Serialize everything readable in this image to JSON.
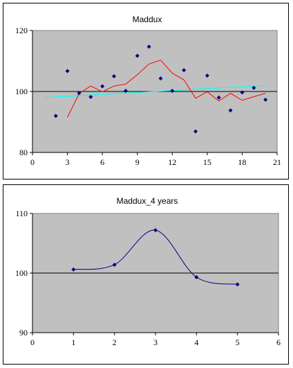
{
  "chart_data": [
    {
      "type": "scatter",
      "title": "Maddux",
      "xlim": [
        0,
        21
      ],
      "ylim": [
        80,
        120
      ],
      "xticks": [
        0,
        3,
        6,
        9,
        12,
        15,
        18,
        21
      ],
      "yticks": [
        80,
        100,
        120
      ],
      "reference_line": 100,
      "grid": false,
      "legend": "none",
      "plot_background": "#c0c0c0",
      "points_color": "#000080",
      "moving_average_color": "#ff0000",
      "trend_color": "#00ffff",
      "points": {
        "x": [
          2,
          3,
          4,
          5,
          6,
          7,
          8,
          9,
          10,
          11,
          12,
          13,
          14,
          15,
          16,
          17,
          18,
          19,
          20
        ],
        "y": [
          92,
          106.7,
          99.5,
          98.2,
          101.7,
          105,
          100.2,
          111.7,
          114.7,
          104.3,
          100.2,
          107,
          86.9,
          105.2,
          98,
          93.8,
          99.7,
          101.2,
          97.3
        ]
      },
      "moving_average": {
        "x": [
          3,
          4,
          5,
          6,
          7,
          8,
          9,
          10,
          11,
          12,
          13,
          14,
          15,
          16,
          17,
          18,
          19,
          20
        ],
        "y": [
          91.5,
          99.3,
          101.8,
          99.9,
          101.8,
          102.4,
          105.5,
          109,
          110.3,
          106,
          103.8,
          97.8,
          99.9,
          96.9,
          99.4,
          97.1,
          98.3,
          99.4
        ]
      },
      "trend": {
        "x": [
          1,
          20
        ],
        "y": [
          98,
          102
        ]
      }
    },
    {
      "type": "line",
      "title": "Maddux_4 years",
      "xlim": [
        0,
        6
      ],
      "ylim": [
        90,
        110
      ],
      "xticks": [
        0,
        1,
        2,
        3,
        4,
        5,
        6
      ],
      "yticks": [
        90,
        100,
        110
      ],
      "reference_line": 100,
      "grid": false,
      "legend": "none",
      "plot_background": "#c0c0c0",
      "series_color": "#000080",
      "series": [
        {
          "x": [
            1,
            2,
            3,
            4,
            5
          ],
          "values": [
            100.6,
            101.4,
            107.2,
            99.3,
            98.1
          ]
        }
      ]
    }
  ]
}
